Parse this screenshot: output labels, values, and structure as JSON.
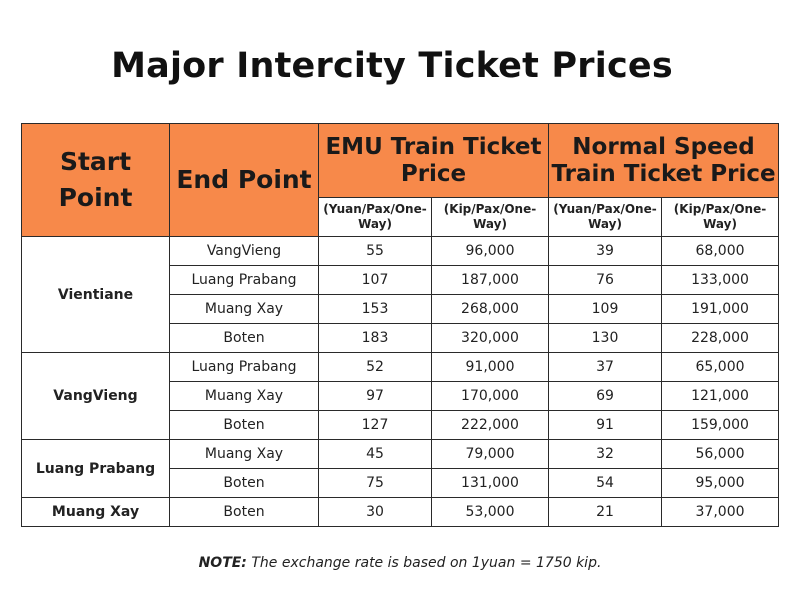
{
  "title": "Major Intercity Ticket Prices",
  "headers": {
    "start": "Start Point",
    "end": "End Point",
    "emu": "EMU Train Ticket Price",
    "normal": "Normal Speed Train Ticket Price",
    "yuan_unit": "(Yuan/Pax/One-Way)",
    "kip_unit": "(Kip/Pax/One-Way)"
  },
  "groups": [
    {
      "origin": "Vientiane",
      "rows": [
        {
          "dest": "VangVieng",
          "emu_yuan": "55",
          "emu_kip": "96,000",
          "normal_yuan": "39",
          "normal_kip": "68,000"
        },
        {
          "dest": "Luang Prabang",
          "emu_yuan": "107",
          "emu_kip": "187,000",
          "normal_yuan": "76",
          "normal_kip": "133,000"
        },
        {
          "dest": "Muang Xay",
          "emu_yuan": "153",
          "emu_kip": "268,000",
          "normal_yuan": "109",
          "normal_kip": "191,000"
        },
        {
          "dest": "Boten",
          "emu_yuan": "183",
          "emu_kip": "320,000",
          "normal_yuan": "130",
          "normal_kip": "228,000"
        }
      ]
    },
    {
      "origin": "VangVieng",
      "rows": [
        {
          "dest": "Luang Prabang",
          "emu_yuan": "52",
          "emu_kip": "91,000",
          "normal_yuan": "37",
          "normal_kip": "65,000"
        },
        {
          "dest": "Muang Xay",
          "emu_yuan": "97",
          "emu_kip": "170,000",
          "normal_yuan": "69",
          "normal_kip": "121,000"
        },
        {
          "dest": "Boten",
          "emu_yuan": "127",
          "emu_kip": "222,000",
          "normal_yuan": "91",
          "normal_kip": "159,000"
        }
      ]
    },
    {
      "origin": "Luang Prabang",
      "rows": [
        {
          "dest": "Muang Xay",
          "emu_yuan": "45",
          "emu_kip": "79,000",
          "normal_yuan": "32",
          "normal_kip": "56,000"
        },
        {
          "dest": "Boten",
          "emu_yuan": "75",
          "emu_kip": "131,000",
          "normal_yuan": "54",
          "normal_kip": "95,000"
        }
      ]
    },
    {
      "origin": "Muang Xay",
      "rows": [
        {
          "dest": "Boten",
          "emu_yuan": "30",
          "emu_kip": "53,000",
          "normal_yuan": "21",
          "normal_kip": "37,000"
        }
      ]
    }
  ],
  "note": {
    "label": "NOTE:",
    "text": " The exchange rate is based on 1yuan = 1750 kip."
  },
  "colors": {
    "header_bg": "#f7894a",
    "border": "#2a2a2a"
  }
}
